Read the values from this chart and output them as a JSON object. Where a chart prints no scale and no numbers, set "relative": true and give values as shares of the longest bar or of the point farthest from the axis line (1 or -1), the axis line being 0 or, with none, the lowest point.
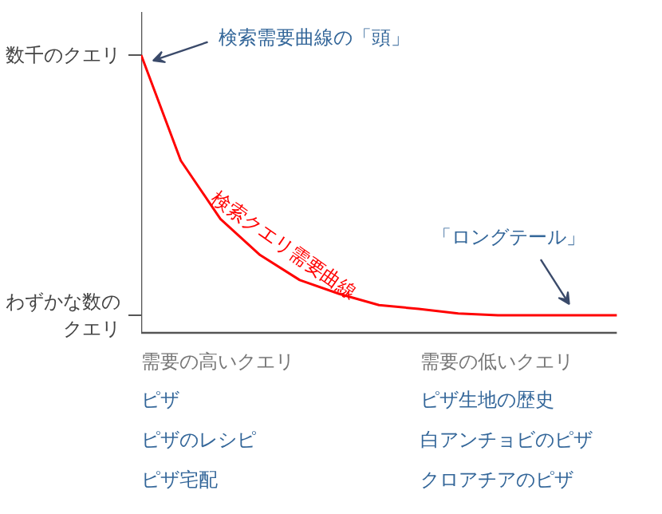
{
  "chart_data": {
    "type": "line",
    "relative": true,
    "categories": [
      null,
      null,
      null,
      null,
      null,
      null,
      null,
      null,
      null,
      null,
      null,
      null,
      null
    ],
    "series": [
      {
        "name": "検索クエリ需要曲線",
        "color": "#ff0000",
        "values": [
          1,
          0.62,
          0.41,
          0.28,
          0.19,
          0.14,
          0.1,
          0.086,
          0.07,
          0.063,
          0.063,
          0.063,
          0.063
        ]
      }
    ],
    "annotations": [
      "数千のクエリ",
      "わずかな数のクエリ",
      "検索需要曲線の「頭」",
      "「ロングテール」",
      "需要の高いクエリ",
      "ピザ",
      "ピザのレシピ",
      "ピザ宅配",
      "需要の低いクエリ",
      "ピザ生地の歴史",
      "白アンチョビのピザ",
      "クロアチアのピザ"
    ],
    "grid": false,
    "legend": false,
    "marker": "none",
    "line_style": "solid"
  }
}
